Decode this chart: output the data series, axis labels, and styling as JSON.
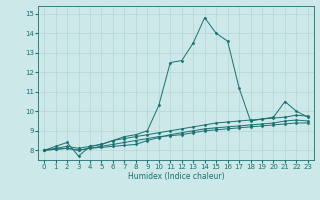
{
  "title": "",
  "xlabel": "Humidex (Indice chaleur)",
  "background_color": "#cce8e8",
  "grid_color": "#b8d8d8",
  "line_color": "#1a7070",
  "xlim": [
    -0.5,
    23.5
  ],
  "ylim": [
    7.5,
    15.4
  ],
  "yticks": [
    8,
    9,
    10,
    11,
    12,
    13,
    14,
    15
  ],
  "xticks": [
    0,
    1,
    2,
    3,
    4,
    5,
    6,
    7,
    8,
    9,
    10,
    11,
    12,
    13,
    14,
    15,
    16,
    17,
    18,
    19,
    20,
    21,
    22,
    23
  ],
  "lines": [
    {
      "x": [
        0,
        1,
        2,
        3,
        4,
        5,
        6,
        7,
        8,
        9,
        10,
        11,
        12,
        13,
        14,
        15,
        16,
        17,
        18,
        19,
        20,
        21,
        22,
        23
      ],
      "y": [
        8.0,
        8.2,
        8.4,
        7.7,
        8.2,
        8.3,
        8.5,
        8.7,
        8.8,
        9.0,
        10.3,
        12.5,
        12.6,
        13.5,
        14.8,
        14.0,
        13.6,
        11.2,
        9.5,
        9.6,
        9.7,
        10.5,
        10.0,
        9.7
      ]
    },
    {
      "x": [
        0,
        1,
        2,
        3,
        4,
        5,
        6,
        7,
        8,
        9,
        10,
        11,
        12,
        13,
        14,
        15,
        16,
        17,
        18,
        19,
        20,
        21,
        22,
        23
      ],
      "y": [
        8.0,
        8.1,
        8.2,
        8.1,
        8.2,
        8.3,
        8.5,
        8.6,
        8.7,
        8.8,
        8.9,
        9.0,
        9.1,
        9.2,
        9.3,
        9.4,
        9.45,
        9.5,
        9.55,
        9.6,
        9.65,
        9.7,
        9.8,
        9.75
      ]
    },
    {
      "x": [
        0,
        1,
        2,
        3,
        4,
        5,
        6,
        7,
        8,
        9,
        10,
        11,
        12,
        13,
        14,
        15,
        16,
        17,
        18,
        19,
        20,
        21,
        22,
        23
      ],
      "y": [
        8.0,
        8.05,
        8.1,
        8.0,
        8.1,
        8.2,
        8.3,
        8.4,
        8.5,
        8.6,
        8.7,
        8.75,
        8.8,
        8.9,
        9.0,
        9.05,
        9.1,
        9.15,
        9.2,
        9.25,
        9.3,
        9.35,
        9.4,
        9.4
      ]
    },
    {
      "x": [
        0,
        1,
        2,
        3,
        4,
        5,
        6,
        7,
        8,
        9,
        10,
        11,
        12,
        13,
        14,
        15,
        16,
        17,
        18,
        19,
        20,
        21,
        22,
        23
      ],
      "y": [
        8.0,
        8.05,
        8.1,
        8.0,
        8.1,
        8.15,
        8.2,
        8.25,
        8.3,
        8.5,
        8.65,
        8.8,
        8.9,
        9.0,
        9.1,
        9.15,
        9.2,
        9.25,
        9.3,
        9.35,
        9.4,
        9.5,
        9.55,
        9.5
      ]
    }
  ],
  "tick_fontsize": 5.0,
  "xlabel_fontsize": 5.5,
  "linewidth": 0.7,
  "markersize": 1.5
}
